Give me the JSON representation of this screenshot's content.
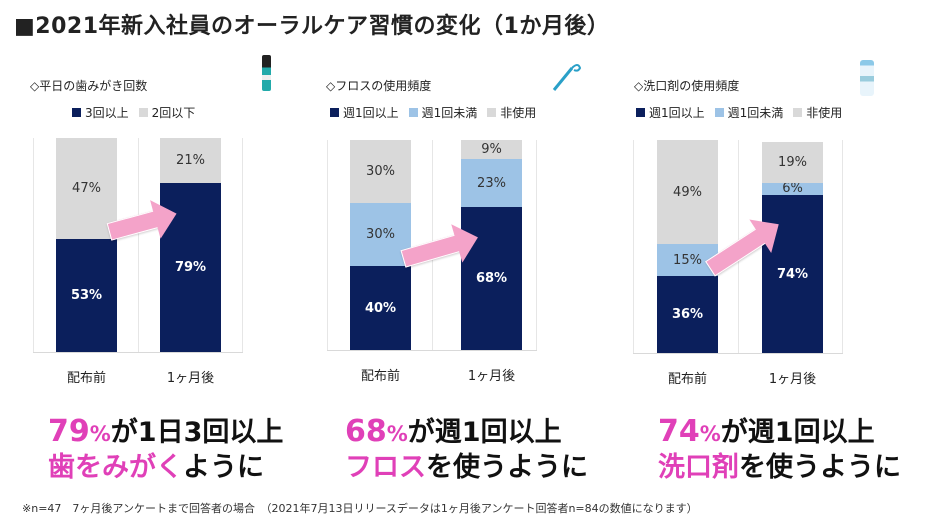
{
  "title": "■2021年新入社員のオーラルケア習慣の変化（1か月後）",
  "colors": {
    "navy": "#0b1f5c",
    "light_blue": "#9dc3e6",
    "gray": "#d9d9d9",
    "pink": "#e040b8",
    "arrow": "#f4a3c9"
  },
  "chart_data": [
    {
      "type": "bar",
      "stacked": true,
      "title": "◇平日の歯みがき回数",
      "categories": [
        "配布前",
        "1ヶ月後"
      ],
      "series": [
        {
          "name": "3回以上",
          "color": "#0b1f5c",
          "values": [
            53,
            79
          ],
          "labels": [
            "53%",
            "79%"
          ]
        },
        {
          "name": "2回以下",
          "color": "#d9d9d9",
          "values": [
            47,
            21
          ],
          "labels": [
            "47%",
            "21%"
          ]
        }
      ],
      "ylim": [
        0,
        100
      ],
      "legend": "top",
      "product_icon": "toothpaste-tube-icon"
    },
    {
      "type": "bar",
      "stacked": true,
      "title": "◇フロスの使用頻度",
      "categories": [
        "配布前",
        "1ヶ月後"
      ],
      "series": [
        {
          "name": "週1回以上",
          "color": "#0b1f5c",
          "values": [
            40,
            68
          ],
          "labels": [
            "40%",
            "68%"
          ]
        },
        {
          "name": "週1回未満",
          "color": "#9dc3e6",
          "values": [
            30,
            23
          ],
          "labels": [
            "30%",
            "23%"
          ]
        },
        {
          "name": "非使用",
          "color": "#d9d9d9",
          "values": [
            30,
            9
          ],
          "labels": [
            "30%",
            "9%"
          ]
        }
      ],
      "ylim": [
        0,
        100
      ],
      "legend": "top",
      "product_icon": "floss-pick-icon"
    },
    {
      "type": "bar",
      "stacked": true,
      "title": "◇洗口剤の使用頻度",
      "categories": [
        "配布前",
        "1ヶ月後"
      ],
      "series": [
        {
          "name": "週1回以上",
          "color": "#0b1f5c",
          "values": [
            36,
            74
          ],
          "labels": [
            "36%",
            "74%"
          ]
        },
        {
          "name": "週1回未満",
          "color": "#9dc3e6",
          "values": [
            15,
            6
          ],
          "labels": [
            "15%",
            "6%"
          ]
        },
        {
          "name": "非使用",
          "color": "#d9d9d9",
          "values": [
            49,
            19
          ],
          "labels": [
            "49%",
            "19%"
          ]
        }
      ],
      "ylim": [
        0,
        100
      ],
      "legend": "top",
      "product_icon": "mouthwash-bottle-icon"
    }
  ],
  "headlines": [
    {
      "pct_num": "79",
      "pct_sign": "%",
      "line1_rest": "が1日3回以上",
      "line2_pink": "歯をみがく",
      "line2_rest": "ように"
    },
    {
      "pct_num": "68",
      "pct_sign": "%",
      "line1_rest": "が週1回以上",
      "line2_pink": "フロス",
      "line2_rest": "を使うように"
    },
    {
      "pct_num": "74",
      "pct_sign": "%",
      "line1_rest": "が週1回以上",
      "line2_pink": "洗口剤",
      "line2_rest": "を使うように"
    }
  ],
  "footnote": "※n=47　7ヶ月後アンケートまで回答者の場合　（2021年7月13日リリースデータは1ヶ月後アンケート回答者n=84の数値になります）"
}
